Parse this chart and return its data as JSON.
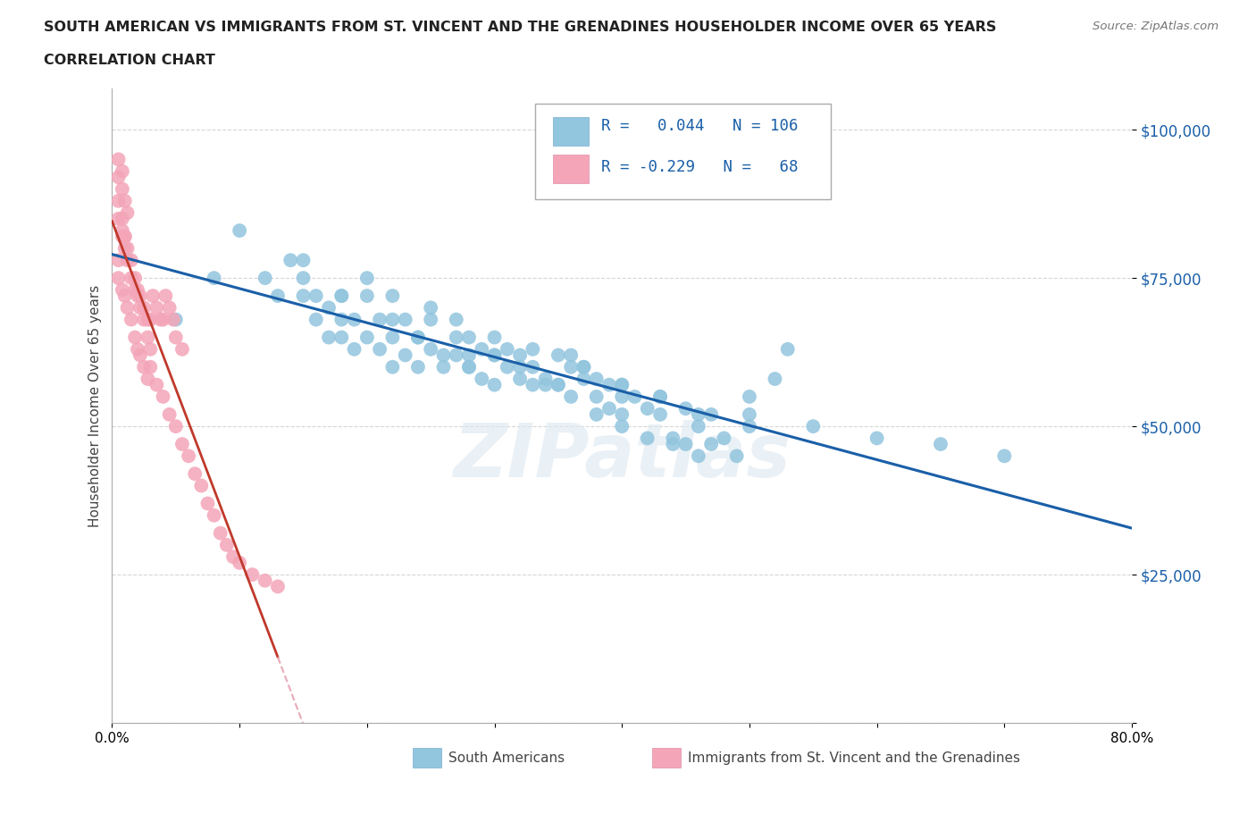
{
  "title_line1": "SOUTH AMERICAN VS IMMIGRANTS FROM ST. VINCENT AND THE GRENADINES HOUSEHOLDER INCOME OVER 65 YEARS",
  "title_line2": "CORRELATION CHART",
  "source": "Source: ZipAtlas.com",
  "ylabel": "Householder Income Over 65 years",
  "xlim": [
    0.0,
    0.8
  ],
  "ylim": [
    0,
    107000
  ],
  "yticks": [
    0,
    25000,
    50000,
    75000,
    100000
  ],
  "xtick_positions": [
    0.0,
    0.1,
    0.2,
    0.3,
    0.4,
    0.5,
    0.6,
    0.7,
    0.8
  ],
  "xtick_labels": [
    "0.0%",
    "",
    "",
    "",
    "",
    "",
    "",
    "",
    "80.0%"
  ],
  "blue_color": "#92c5de",
  "pink_color": "#f4a5b8",
  "blue_line_color": "#1a5fa8",
  "pink_line_color": "#c0392b",
  "pink_line_dash_color": "#e8aab8",
  "legend_R1": " 0.044",
  "legend_N1": "106",
  "legend_R2": "-0.229",
  "legend_N2": " 68",
  "label1": "South Americans",
  "label2": "Immigrants from St. Vincent and the Grenadines",
  "watermark": "ZIPatlas",
  "blue_x": [
    0.05,
    0.08,
    0.1,
    0.12,
    0.13,
    0.14,
    0.15,
    0.15,
    0.16,
    0.16,
    0.17,
    0.17,
    0.18,
    0.18,
    0.18,
    0.19,
    0.19,
    0.2,
    0.2,
    0.21,
    0.21,
    0.22,
    0.22,
    0.23,
    0.23,
    0.24,
    0.24,
    0.25,
    0.25,
    0.26,
    0.27,
    0.27,
    0.28,
    0.28,
    0.29,
    0.29,
    0.3,
    0.3,
    0.31,
    0.31,
    0.32,
    0.32,
    0.33,
    0.33,
    0.34,
    0.35,
    0.36,
    0.36,
    0.37,
    0.37,
    0.38,
    0.38,
    0.39,
    0.39,
    0.4,
    0.4,
    0.41,
    0.42,
    0.43,
    0.43,
    0.44,
    0.45,
    0.46,
    0.47,
    0.47,
    0.48,
    0.49,
    0.5,
    0.52,
    0.53,
    0.28,
    0.3,
    0.32,
    0.34,
    0.36,
    0.38,
    0.4,
    0.42,
    0.44,
    0.46,
    0.22,
    0.24,
    0.26,
    0.28,
    0.35,
    0.4,
    0.45,
    0.5,
    0.55,
    0.6,
    0.65,
    0.7,
    0.15,
    0.18,
    0.2,
    0.22,
    0.25,
    0.27,
    0.3,
    0.33,
    0.35,
    0.37,
    0.4,
    0.43,
    0.46,
    0.5
  ],
  "blue_y": [
    68000,
    75000,
    83000,
    75000,
    72000,
    78000,
    75000,
    72000,
    68000,
    72000,
    65000,
    70000,
    68000,
    65000,
    72000,
    68000,
    63000,
    65000,
    72000,
    63000,
    68000,
    60000,
    65000,
    62000,
    68000,
    60000,
    65000,
    63000,
    68000,
    60000,
    62000,
    65000,
    60000,
    62000,
    58000,
    63000,
    57000,
    62000,
    60000,
    63000,
    58000,
    62000,
    57000,
    60000,
    58000,
    57000,
    60000,
    62000,
    58000,
    60000,
    55000,
    58000,
    53000,
    57000,
    52000,
    57000,
    55000,
    53000,
    52000,
    55000,
    48000,
    47000,
    50000,
    47000,
    52000,
    48000,
    45000,
    55000,
    58000,
    63000,
    65000,
    62000,
    60000,
    57000,
    55000,
    52000,
    50000,
    48000,
    47000,
    45000,
    68000,
    65000,
    62000,
    60000,
    57000,
    55000,
    53000,
    52000,
    50000,
    48000,
    47000,
    45000,
    78000,
    72000,
    75000,
    72000,
    70000,
    68000,
    65000,
    63000,
    62000,
    60000,
    57000,
    55000,
    52000,
    50000
  ],
  "pink_x": [
    0.005,
    0.008,
    0.01,
    0.012,
    0.015,
    0.018,
    0.02,
    0.022,
    0.025,
    0.028,
    0.03,
    0.032,
    0.035,
    0.038,
    0.04,
    0.042,
    0.045,
    0.048,
    0.05,
    0.055,
    0.008,
    0.01,
    0.012,
    0.015,
    0.018,
    0.02,
    0.022,
    0.025,
    0.028,
    0.03,
    0.005,
    0.008,
    0.01,
    0.012,
    0.015,
    0.018,
    0.02,
    0.022,
    0.025,
    0.028,
    0.005,
    0.008,
    0.01,
    0.012,
    0.005,
    0.008,
    0.01,
    0.005,
    0.008,
    0.005,
    0.03,
    0.035,
    0.04,
    0.045,
    0.05,
    0.055,
    0.06,
    0.065,
    0.07,
    0.075,
    0.08,
    0.085,
    0.09,
    0.095,
    0.1,
    0.11,
    0.12,
    0.13
  ],
  "pink_y": [
    88000,
    85000,
    82000,
    80000,
    78000,
    75000,
    73000,
    72000,
    70000,
    68000,
    68000,
    72000,
    70000,
    68000,
    68000,
    72000,
    70000,
    68000,
    65000,
    63000,
    82000,
    80000,
    78000,
    75000,
    73000,
    72000,
    70000,
    68000,
    65000,
    63000,
    75000,
    73000,
    72000,
    70000,
    68000,
    65000,
    63000,
    62000,
    60000,
    58000,
    92000,
    90000,
    88000,
    86000,
    85000,
    83000,
    82000,
    95000,
    93000,
    78000,
    60000,
    57000,
    55000,
    52000,
    50000,
    47000,
    45000,
    42000,
    40000,
    37000,
    35000,
    32000,
    30000,
    28000,
    27000,
    25000,
    24000,
    23000
  ]
}
